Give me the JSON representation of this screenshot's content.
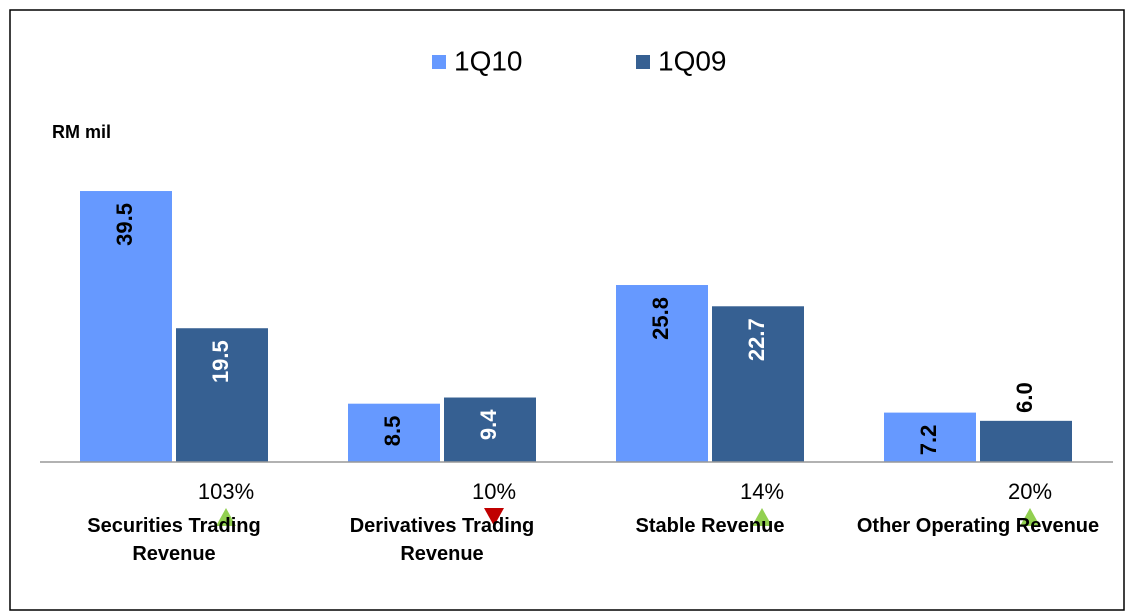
{
  "chart_data": {
    "type": "bar",
    "y_label": "RM mil",
    "categories": [
      "Securities Trading Revenue",
      "Derivatives Trading Revenue",
      "Stable Revenue",
      "Other Operating Revenue"
    ],
    "series": [
      {
        "name": "1Q10",
        "color": "#6699ff",
        "label_color": "#000000",
        "values": [
          39.5,
          8.5,
          25.8,
          7.2
        ],
        "value_labels": [
          "39.5",
          "8.5",
          "25.8",
          "7.2"
        ]
      },
      {
        "name": "1Q09",
        "color": "#366092",
        "label_color": "#ffffff",
        "values": [
          19.5,
          9.4,
          22.7,
          6
        ],
        "value_labels": [
          "19.5",
          "9.4",
          "22.7",
          "6.0"
        ]
      }
    ],
    "changes": {
      "values": [
        103,
        10,
        14,
        20
      ],
      "value_labels": [
        "103%",
        "10%",
        "14%",
        "20%"
      ],
      "directions": [
        "up",
        "down",
        "up",
        "up"
      ],
      "up_color": "#92d050",
      "down_color": "#c00000"
    }
  }
}
